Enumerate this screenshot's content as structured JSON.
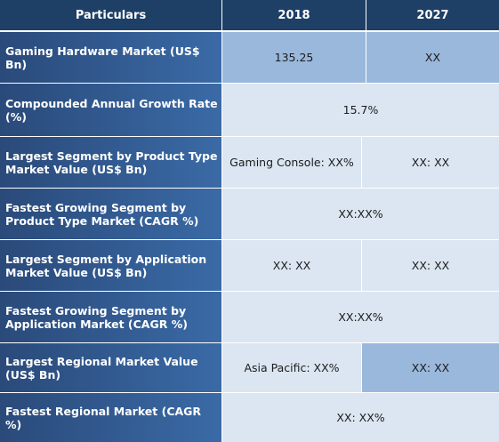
{
  "header": {
    "col1": "Particulars",
    "col2": "2018",
    "col3": "2027"
  },
  "rows": [
    {
      "label": "Gaming Hardware Market (US$ Bn)",
      "v2018": "135.25",
      "v2027": "XX"
    },
    {
      "label": "Compounded Annual Growth Rate (%)",
      "merged": "15.7%"
    },
    {
      "label": "Largest Segment by Product Type Market Value (US$ Bn)",
      "v2018": "Gaming Console: XX%",
      "v2027": "XX: XX"
    },
    {
      "label": "Fastest Growing Segment by Product Type Market (CAGR %)",
      "merged": "XX:XX%"
    },
    {
      "label": "Largest Segment by Application Market Value (US$ Bn)",
      "v2018": "XX: XX",
      "v2027": "XX: XX"
    },
    {
      "label": "Fastest Growing Segment by Application Market (CAGR %)",
      "merged": "XX:XX%"
    },
    {
      "label": "Largest Regional Market Value (US$ Bn)",
      "v2018": "Asia Pacific: XX%",
      "v2027": "XX: XX"
    },
    {
      "label": "Fastest Regional Market (CAGR %)",
      "merged": "XX: XX%"
    }
  ]
}
